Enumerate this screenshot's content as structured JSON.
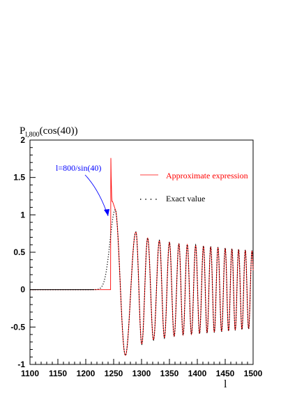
{
  "chart_data": {
    "type": "line",
    "title_base": "P",
    "title_subscript": "l,800",
    "title_suffix": "(cos(40))",
    "xlabel": "l",
    "ylabel": "",
    "xlim": [
      1100,
      1500
    ],
    "ylim": [
      -1,
      2
    ],
    "x_major_ticks": [
      "1100",
      "1150",
      "1200",
      "1250",
      "1300",
      "1350",
      "1400",
      "1450",
      "1500"
    ],
    "y_major_ticks": [
      "-1",
      "-0.5",
      "0",
      "0.5",
      "1",
      "1.5",
      "2"
    ],
    "grid": false,
    "legend_placement": "top-right",
    "annotation": {
      "text": "l=800/sin(40)",
      "x": 1245,
      "y": 1.0
    },
    "model": {
      "turning_point": 1244.6,
      "onset_center": 1238,
      "onset_width": 8.5,
      "oscillation_peaks": [
        1253,
        1290,
        1311,
        1332,
        1350,
        1367,
        1382,
        1397,
        1411,
        1424,
        1437,
        1450,
        1462,
        1474,
        1486,
        1498
      ],
      "peak_value": 1.07,
      "amplitude_decay": [
        [
          1253,
          1.07
        ],
        [
          1275,
          0.84
        ],
        [
          1290,
          0.77
        ],
        [
          1311,
          0.69
        ],
        [
          1330,
          0.66
        ],
        [
          1370,
          0.61
        ],
        [
          1420,
          0.58
        ],
        [
          1500,
          0.52
        ]
      ],
      "approx_spike": {
        "x": 1244.6,
        "value": 1.76
      },
      "approx_shoulder": {
        "x": 1246,
        "value": 1.18
      }
    },
    "series": [
      {
        "name": "Approximate expression",
        "color": "#ff0000",
        "style": "solid"
      },
      {
        "name": "Exact value",
        "color": "#000000",
        "style": "dotted"
      }
    ]
  }
}
